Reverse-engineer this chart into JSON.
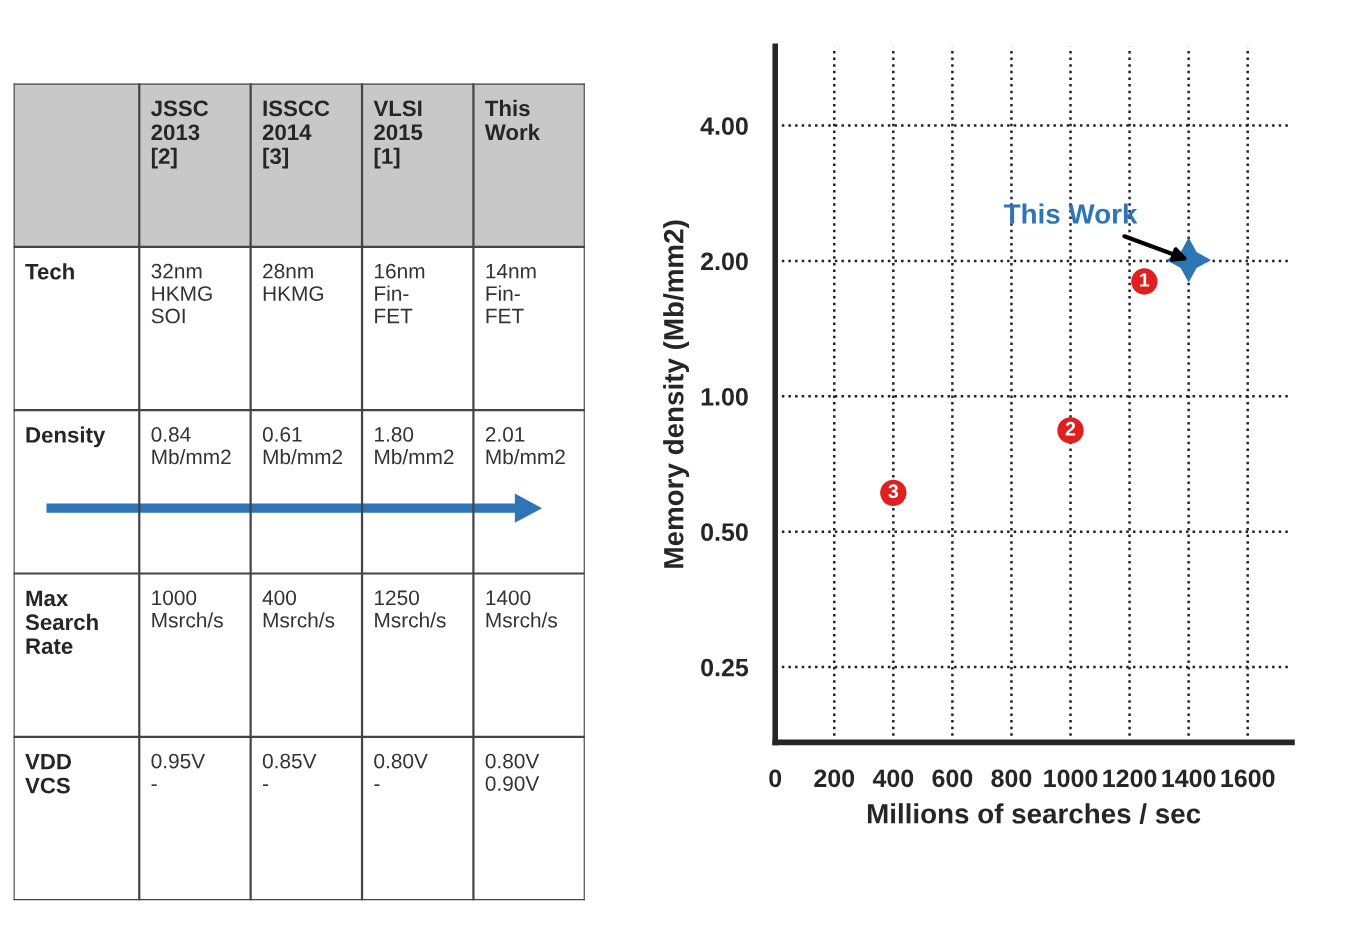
{
  "chart_data": [
    {
      "type": "other",
      "categories": [
        null,
        "JSSC\n2013\n[2]",
        "ISSCC\n2014\n[3]",
        "VLSI\n2015\n[1]",
        "This\nWork"
      ],
      "y_categories": [
        "Tech",
        "Density",
        "Max\nSearch\nRate",
        "VDD\nVCS"
      ],
      "cell_labels": [
        [
          "32nm\nHKMG\nSOI",
          "28nm\nHKMG",
          "16nm\nFin-\nFET",
          "14nm\nFin-\nFET"
        ],
        [
          "0.84\nMb/mm2",
          "0.61\nMb/mm2",
          "1.80\nMb/mm2",
          "2.01\nMb/mm2"
        ],
        [
          "1000\nMsrch/s",
          "400\nMsrch/s",
          "1250\nMsrch/s",
          "1400\nMsrch/s"
        ],
        [
          "0.95V\n-",
          "0.85V\n-",
          "0.80V\n-",
          "0.80V\n0.90V"
        ]
      ]
    },
    {
      "type": "scatter",
      "xlabel": "Millions of searches / sec",
      "ylabel": "Memory density (Mb/mm2)",
      "series": [
        {
          "color": "#e02020",
          "marker": "circle",
          "x": [
            1000,
            400,
            1250
          ],
          "values": [
            0.84,
            0.61,
            1.8
          ]
        },
        {
          "color": "#2e75b6",
          "marker": "star",
          "x": [
            1400
          ],
          "values": [
            2.01
          ]
        }
      ],
      "annotations": [
        {
          "text": "This Work",
          "x": 1400,
          "y": 2.01
        },
        {
          "text": "1",
          "x": 1250,
          "y": 1.8
        },
        {
          "text": "2",
          "x": 1000,
          "y": 0.84
        },
        {
          "text": "3",
          "x": 400,
          "y": 0.61
        }
      ],
      "log": "y",
      "xlim": [
        0,
        1750
      ],
      "ylim": [
        0.17,
        6
      ],
      "xticks": [
        0,
        200,
        400,
        600,
        800,
        1000,
        1200,
        1400,
        1600
      ],
      "yticks": [
        {
          "value": 0.25,
          "label": "0.25"
        },
        {
          "value": 0.5,
          "label": "0.50"
        },
        {
          "value": 1,
          "label": "1.00"
        },
        {
          "value": 2,
          "label": "2.00"
        },
        {
          "value": 4,
          "label": "4.00"
        }
      ],
      "grid": true,
      "legend": false
    }
  ]
}
